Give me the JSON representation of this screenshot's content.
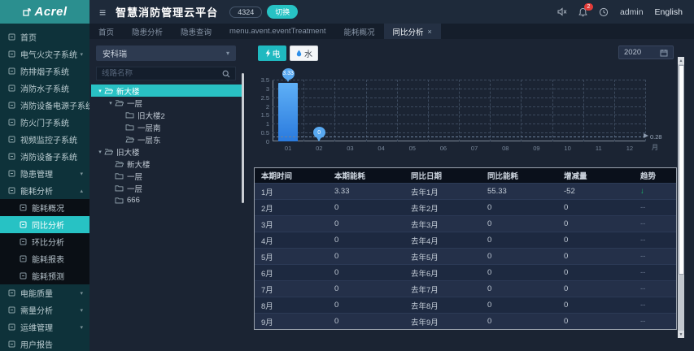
{
  "header": {
    "logo": "Acrel",
    "title": "智慧消防管理云平台",
    "badge": "4324",
    "switch_label": "切换",
    "notification_count": "2",
    "user": "admin",
    "language": "English"
  },
  "tabs": [
    {
      "label": "首页",
      "active": false,
      "closable": false
    },
    {
      "label": "隐患分析",
      "active": false,
      "closable": false
    },
    {
      "label": "隐患查询",
      "active": false,
      "closable": false
    },
    {
      "label": "menu.avent.eventTreatment",
      "active": false,
      "closable": false
    },
    {
      "label": "能耗概况",
      "active": false,
      "closable": false
    },
    {
      "label": "同比分析",
      "active": true,
      "closable": true
    }
  ],
  "sidebar": {
    "items": [
      {
        "label": "首页",
        "icon": "home",
        "expandable": false
      },
      {
        "label": "电气火灾子系统",
        "icon": "electrical-fire",
        "expandable": true
      },
      {
        "label": "防排烟子系统",
        "icon": "smoke-control",
        "expandable": false
      },
      {
        "label": "消防水子系统",
        "icon": "fire-water",
        "expandable": false
      },
      {
        "label": "消防设备电源子系统",
        "icon": "fire-power",
        "expandable": false
      },
      {
        "label": "防火门子系统",
        "icon": "fire-door",
        "expandable": false
      },
      {
        "label": "视频监控子系统",
        "icon": "video-monitor",
        "expandable": false
      },
      {
        "label": "消防设备子系统",
        "icon": "fire-device",
        "expandable": false
      },
      {
        "label": "隐患管理",
        "icon": "hazard-manage",
        "expandable": true
      },
      {
        "label": "能耗分析",
        "icon": "energy-analysis",
        "expandable": true,
        "expanded": true,
        "children": [
          {
            "label": "能耗概况",
            "icon": "energy-overview",
            "active": false
          },
          {
            "label": "同比分析",
            "icon": "yoy-analysis",
            "active": true
          },
          {
            "label": "环比分析",
            "icon": "mom-analysis",
            "active": false
          },
          {
            "label": "能耗报表",
            "icon": "energy-report",
            "active": false
          },
          {
            "label": "能耗预测",
            "icon": "energy-forecast",
            "active": false
          }
        ]
      },
      {
        "label": "电能质量",
        "icon": "power-quality",
        "expandable": true
      },
      {
        "label": "需量分析",
        "icon": "demand-analysis",
        "expandable": true
      },
      {
        "label": "运维管理",
        "icon": "ops-manage",
        "expandable": true
      },
      {
        "label": "用户报告",
        "icon": "user-report",
        "expandable": false
      }
    ]
  },
  "tree_panel": {
    "org_select": "安科瑞",
    "search_placeholder": "线路名称",
    "nodes": [
      {
        "label": "新大楼",
        "level": 0,
        "expander": true,
        "folder": "open",
        "selected": true
      },
      {
        "label": "一层",
        "level": 1,
        "expander": true,
        "folder": "open",
        "selected": false
      },
      {
        "label": "旧大楼2",
        "level": 2,
        "expander": false,
        "folder": "closed",
        "selected": false
      },
      {
        "label": "一层南",
        "level": 2,
        "expander": false,
        "folder": "closed",
        "selected": false
      },
      {
        "label": "一层东",
        "level": 2,
        "expander": false,
        "folder": "open",
        "selected": false
      },
      {
        "label": "旧大楼",
        "level": 0,
        "expander": true,
        "folder": "open",
        "selected": false
      },
      {
        "label": "新大楼",
        "level": 1,
        "expander": false,
        "folder": "open",
        "selected": false
      },
      {
        "label": "一层",
        "level": 1,
        "expander": false,
        "folder": "closed",
        "selected": false
      },
      {
        "label": "一层",
        "level": 1,
        "expander": false,
        "folder": "closed",
        "selected": false
      },
      {
        "label": "666",
        "level": 1,
        "expander": false,
        "folder": "closed",
        "selected": false
      }
    ]
  },
  "toolbar": {
    "electric_label": "电",
    "water_label": "水",
    "year": "2020"
  },
  "chart_data": {
    "type": "bar",
    "title": "",
    "categories": [
      "01",
      "02",
      "03",
      "04",
      "05",
      "06",
      "07",
      "08",
      "09",
      "10",
      "11",
      "12"
    ],
    "values": [
      3.33,
      0,
      0,
      0,
      0,
      0,
      0,
      0,
      0,
      0,
      0,
      0
    ],
    "point_labels": [
      {
        "index": 0,
        "label": "3.33"
      },
      {
        "index": 1,
        "label": "0"
      }
    ],
    "avg_line": {
      "value": 0.28,
      "label": "0.28"
    },
    "xlabel": "月",
    "ylabel": "",
    "ylim": [
      0,
      3.5
    ],
    "yticks": [
      0,
      0.5,
      1,
      1.5,
      2,
      2.5,
      3,
      3.5
    ],
    "grid": true,
    "legend": []
  },
  "table": {
    "columns": [
      "本期时间",
      "本期能耗",
      "同比日期",
      "同比能耗",
      "增减量",
      "趋势"
    ],
    "rows": [
      [
        "1月",
        "3.33",
        "去年1月",
        "55.33",
        "-52",
        "↓"
      ],
      [
        "2月",
        "0",
        "去年2月",
        "0",
        "0",
        "--"
      ],
      [
        "3月",
        "0",
        "去年3月",
        "0",
        "0",
        "--"
      ],
      [
        "4月",
        "0",
        "去年4月",
        "0",
        "0",
        "--"
      ],
      [
        "5月",
        "0",
        "去年5月",
        "0",
        "0",
        "--"
      ],
      [
        "6月",
        "0",
        "去年6月",
        "0",
        "0",
        "--"
      ],
      [
        "7月",
        "0",
        "去年7月",
        "0",
        "0",
        "--"
      ],
      [
        "8月",
        "0",
        "去年8月",
        "0",
        "0",
        "--"
      ],
      [
        "9月",
        "0",
        "去年9月",
        "0",
        "0",
        "--"
      ]
    ]
  },
  "colors": {
    "accent": "#27c2c4",
    "logo_bg": "#2b8f8f",
    "bar_top": "#5fb0f6",
    "bar_bottom": "#2a7ade",
    "marker": "#58a8f0",
    "trend_down": "#19be6b"
  }
}
